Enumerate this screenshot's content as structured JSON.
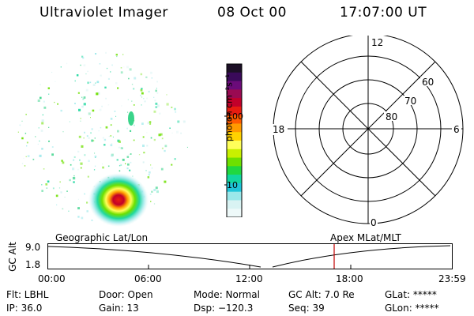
{
  "header": {
    "instrument": "Ultraviolet Imager",
    "date": "08 Oct 00",
    "time": "17:07:00 UT"
  },
  "colorbar": {
    "label": "photon cm⁻²s⁻¹",
    "ticks": [
      "100",
      "10"
    ],
    "colors": [
      "#1c0f26",
      "#3a0a5a",
      "#6b0b7a",
      "#9a0a52",
      "#c2002a",
      "#e81c10",
      "#ff5a00",
      "#ff9a00",
      "#ffd200",
      "#ffff5a",
      "#c8f000",
      "#6ee000",
      "#20d840",
      "#12d6a0",
      "#20c4d8",
      "#9ae8ea",
      "#d9f3f3",
      "#eef9f9"
    ]
  },
  "polar_plot": {
    "mlt_labels": {
      "top": "12",
      "left": "18",
      "right": "6",
      "bottom": "0"
    },
    "lat_labels": [
      "60",
      "70",
      "80"
    ]
  },
  "timeline": {
    "y_axis_label": "GC Alt",
    "y_ticks": [
      "9.0",
      "1.8"
    ],
    "left_caption": "Geographic Lat/Lon",
    "right_caption": "Apex MLat/MLT",
    "x_ticks": [
      "00:00",
      "06:00",
      "12:00",
      "18:00",
      "23:59"
    ]
  },
  "status": {
    "flt": "Flt: LBHL",
    "ip": "IP: 36.0",
    "door": "Door: Open",
    "gain": "Gain: 13",
    "mode": "Mode: Normal",
    "dsp": "Dsp: −120.3",
    "gc_alt": "GC Alt: 7.0 Re",
    "seq": "Seq: 39",
    "glat": "GLat: *****",
    "glon": "GLon: *****"
  }
}
